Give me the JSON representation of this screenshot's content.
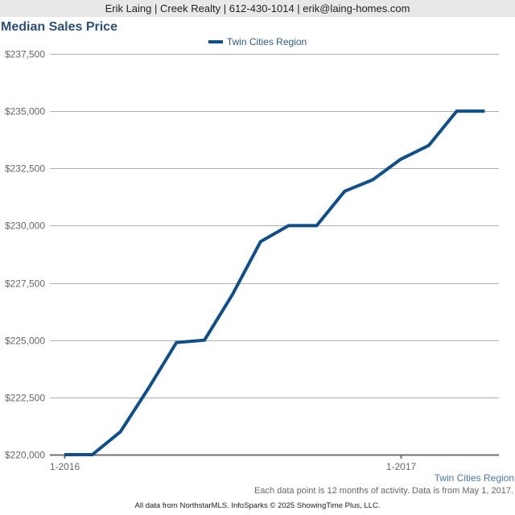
{
  "header": {
    "contact_line": "Erik Laing | Creek Realty | 612-430-1014 | erik@laing-homes.com"
  },
  "colors": {
    "series": "#0e4e8a",
    "title": "#2a4f78",
    "grid": "#b0b0b0",
    "axis": "#707070"
  },
  "chart_data": {
    "type": "line",
    "title": "Median Sales Price",
    "xlabel": "",
    "ylabel": "",
    "legend": {
      "position": "top-center",
      "entries": [
        "Twin Cities Region"
      ]
    },
    "grid": true,
    "x": [
      "1-2016",
      "2-2016",
      "3-2016",
      "4-2016",
      "5-2016",
      "6-2016",
      "7-2016",
      "8-2016",
      "9-2016",
      "10-2016",
      "11-2016",
      "12-2016",
      "1-2017",
      "2-2017",
      "3-2017",
      "4-2017"
    ],
    "x_tick_labels": [
      "1-2016",
      "1-2017"
    ],
    "x_tick_indices": [
      0,
      12
    ],
    "y_tick_labels": [
      "$220,000",
      "$222,500",
      "$225,000",
      "$227,500",
      "$230,000",
      "$232,500",
      "$235,000",
      "$237,500"
    ],
    "y_ticks": [
      220000,
      222500,
      225000,
      227500,
      230000,
      232500,
      235000,
      237500
    ],
    "ylim": [
      220000,
      237500
    ],
    "series": [
      {
        "name": "Twin Cities Region",
        "values": [
          220000,
          220000,
          221000,
          222900,
          224900,
          225000,
          227000,
          229300,
          230000,
          230000,
          231500,
          232000,
          232900,
          233500,
          235000,
          235000
        ]
      }
    ]
  },
  "region_label": "Twin Cities Region",
  "note": "Each data point is 12 months of activity. Data is from May 1, 2017.",
  "footer": "All data from NorthstarMLS. InfoSparks © 2025 ShowingTime Plus, LLC."
}
